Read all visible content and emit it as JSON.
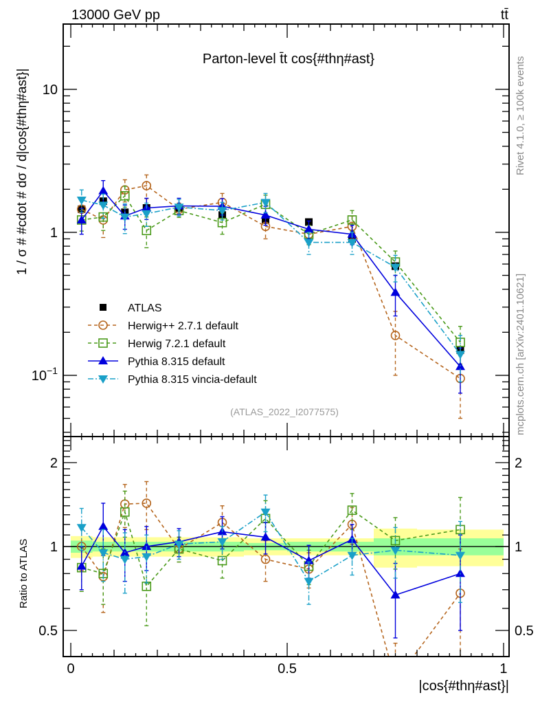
{
  "chart_data": {
    "type": "line",
    "header_left": "13000 GeV pp",
    "header_right": "tt̄",
    "title": "Parton-level t̄t cos{#thη#ast}",
    "xlabel": "|cos{#thη#ast}|",
    "ylabel": "1 / σ # #cdot # dσ / d|cos{#thη#ast}|",
    "ratio_ylabel": "Ratio to ATLAS",
    "analysis_tag": "(ATLAS_2022_I2077575)",
    "side_label_top": "Rivet 4.1.0, ≥ 100k events",
    "side_label_bottom": "mcplots.cern.ch [arXiv:2401.10621]",
    "xlim": [
      -0.0175,
      1.0127
    ],
    "ylim": [
      0.0373,
      28.6
    ],
    "yscale": "log",
    "ratio_ylim": [
      0.403,
      2.48
    ],
    "ratio_yscale": "log",
    "x_ticks": [
      {
        "v": 0,
        "label": "0"
      },
      {
        "v": 0.5,
        "label": "0.5"
      },
      {
        "v": 1,
        "label": "1"
      }
    ],
    "y_ticks": [
      {
        "v": 0.1,
        "label": "10",
        "exp": "−1"
      },
      {
        "v": 1,
        "label": "1"
      },
      {
        "v": 10,
        "label": "10"
      }
    ],
    "ratio_y_ticks": [
      {
        "v": 0.5,
        "label": "0.5"
      },
      {
        "v": 1,
        "label": "1"
      },
      {
        "v": 2,
        "label": "2"
      }
    ],
    "legend_position": "lower-left",
    "bins": [
      [
        0,
        0.05
      ],
      [
        0.05,
        0.1
      ],
      [
        0.1,
        0.15
      ],
      [
        0.15,
        0.2
      ],
      [
        0.2,
        0.3
      ],
      [
        0.3,
        0.4
      ],
      [
        0.4,
        0.5
      ],
      [
        0.5,
        0.6
      ],
      [
        0.6,
        0.7
      ],
      [
        0.7,
        0.8
      ],
      [
        0.8,
        1.0
      ]
    ],
    "x": [
      0.025,
      0.075,
      0.125,
      0.175,
      0.25,
      0.35,
      0.45,
      0.55,
      0.65,
      0.75,
      0.9
    ],
    "data": {
      "name": "ATLAS",
      "color": "#000000",
      "values": [
        1.45,
        1.65,
        1.38,
        1.48,
        1.48,
        1.32,
        1.22,
        1.18,
        0.9,
        0.58,
        0.15
      ],
      "band_inner": [
        0.05,
        0.04,
        0.04,
        0.04,
        0.04,
        0.04,
        0.03,
        0.04,
        0.04,
        0.07,
        0.07
      ],
      "band_outer": [
        0.09,
        0.08,
        0.08,
        0.08,
        0.08,
        0.08,
        0.07,
        0.07,
        0.07,
        0.16,
        0.15
      ]
    },
    "series": [
      {
        "name": "Herwig++ 2.7.1 default",
        "color": "#b5651d",
        "style": "dashed",
        "marker": "open-circle",
        "values": [
          1.45,
          1.22,
          1.98,
          2.12,
          1.45,
          1.62,
          1.1,
          0.97,
          1.1,
          0.19,
          0.095
        ],
        "err": [
          0.22,
          0.3,
          0.35,
          0.4,
          0.15,
          0.25,
          0.2,
          0.15,
          0.2,
          0.09,
          0.045
        ],
        "ratio": [
          1.0,
          0.78,
          1.42,
          1.43,
          0.98,
          1.22,
          0.9,
          0.83,
          1.2,
          0.33,
          0.68
        ],
        "ratio_err": [
          0.18,
          0.2,
          0.25,
          0.28,
          0.1,
          0.18,
          0.15,
          0.12,
          0.18,
          0.12,
          0.3
        ]
      },
      {
        "name": "Herwig 7.2.1 default",
        "color": "#4a9a1a",
        "style": "dashed",
        "marker": "open-square",
        "values": [
          1.22,
          1.28,
          1.8,
          1.03,
          1.42,
          1.17,
          1.57,
          0.97,
          1.22,
          0.62,
          0.17
        ],
        "err": [
          0.2,
          0.25,
          0.3,
          0.25,
          0.15,
          0.2,
          0.25,
          0.15,
          0.2,
          0.12,
          0.05
        ],
        "ratio": [
          0.84,
          0.8,
          1.33,
          0.72,
          0.98,
          0.89,
          1.26,
          0.85,
          1.35,
          1.05,
          1.15
        ],
        "ratio_err": [
          0.15,
          0.18,
          0.25,
          0.2,
          0.1,
          0.12,
          0.2,
          0.12,
          0.2,
          0.22,
          0.35
        ]
      },
      {
        "name": "Pythia 8.315 default",
        "color": "#0000dd",
        "style": "solid",
        "marker": "filled-triangle-up",
        "values": [
          1.22,
          1.95,
          1.3,
          1.48,
          1.53,
          1.52,
          1.32,
          1.05,
          0.97,
          0.38,
          0.115
        ],
        "err": [
          0.25,
          0.35,
          0.25,
          0.25,
          0.2,
          0.2,
          0.2,
          0.15,
          0.15,
          0.12,
          0.04
        ],
        "ratio": [
          0.85,
          1.18,
          0.95,
          1.0,
          1.04,
          1.13,
          1.08,
          0.89,
          1.06,
          0.67,
          0.8
        ],
        "ratio_err": [
          0.15,
          0.25,
          0.2,
          0.18,
          0.12,
          0.15,
          0.14,
          0.12,
          0.14,
          0.2,
          0.3
        ]
      },
      {
        "name": "Pythia 8.315 vincia-default",
        "color": "#1aa0c8",
        "style": "dashdot",
        "marker": "filled-triangle-down",
        "values": [
          1.68,
          1.55,
          1.28,
          1.35,
          1.5,
          1.42,
          1.62,
          0.85,
          0.85,
          0.57,
          0.14
        ],
        "err": [
          0.3,
          0.3,
          0.3,
          0.25,
          0.2,
          0.2,
          0.25,
          0.15,
          0.15,
          0.12,
          0.05
        ],
        "ratio": [
          1.17,
          0.95,
          0.9,
          0.92,
          1.02,
          1.04,
          1.33,
          0.75,
          0.93,
          0.97,
          0.93
        ],
        "ratio_err": [
          0.2,
          0.2,
          0.22,
          0.18,
          0.12,
          0.14,
          0.2,
          0.13,
          0.14,
          0.2,
          0.3
        ]
      }
    ]
  }
}
